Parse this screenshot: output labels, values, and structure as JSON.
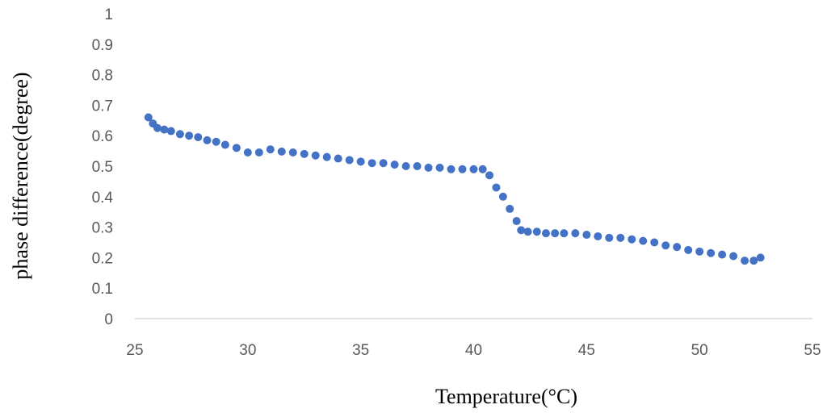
{
  "chart_data": {
    "type": "scatter",
    "title": "",
    "xlabel": "Temperature(°C)",
    "ylabel": "phase difference(degree)",
    "xlim": [
      25,
      55
    ],
    "ylim": [
      0,
      1
    ],
    "x_ticks": [
      "25",
      "30",
      "35",
      "40",
      "45",
      "50",
      "55"
    ],
    "y_ticks": [
      "0",
      "0.1",
      "0.2",
      "0.3",
      "0.4",
      "0.5",
      "0.6",
      "0.7",
      "0.8",
      "0.9",
      "1"
    ],
    "grid": false,
    "legend": "none",
    "marker_color": "#4472C4",
    "series": [
      {
        "x": [
          25.6,
          25.8,
          26.0,
          26.3,
          26.6,
          27.0,
          27.4,
          27.8,
          28.2,
          28.6,
          29.0,
          29.5,
          30.0,
          30.5,
          31.0,
          31.5,
          32.0,
          32.5,
          33.0,
          33.5,
          34.0,
          34.5,
          35.0,
          35.5,
          36.0,
          36.5,
          37.0,
          37.5,
          38.0,
          38.5,
          39.0,
          39.5,
          40.0,
          40.4,
          40.7,
          41.0,
          41.3,
          41.6,
          41.9,
          42.1,
          42.4,
          42.8,
          43.2,
          43.6,
          44.0,
          44.5,
          45.0,
          45.5,
          46.0,
          46.5,
          47.0,
          47.5,
          48.0,
          48.5,
          49.0,
          49.5,
          50.0,
          50.5,
          51.0,
          51.5,
          52.0,
          52.4,
          52.7
        ],
        "y": [
          0.66,
          0.64,
          0.625,
          0.62,
          0.615,
          0.605,
          0.6,
          0.595,
          0.585,
          0.58,
          0.57,
          0.56,
          0.545,
          0.545,
          0.555,
          0.548,
          0.545,
          0.54,
          0.535,
          0.53,
          0.525,
          0.52,
          0.515,
          0.51,
          0.51,
          0.505,
          0.5,
          0.5,
          0.495,
          0.495,
          0.49,
          0.49,
          0.49,
          0.49,
          0.47,
          0.43,
          0.4,
          0.36,
          0.32,
          0.29,
          0.285,
          0.285,
          0.28,
          0.28,
          0.28,
          0.28,
          0.275,
          0.27,
          0.265,
          0.265,
          0.26,
          0.255,
          0.25,
          0.24,
          0.235,
          0.225,
          0.22,
          0.215,
          0.21,
          0.205,
          0.19,
          0.19,
          0.2
        ]
      }
    ]
  }
}
